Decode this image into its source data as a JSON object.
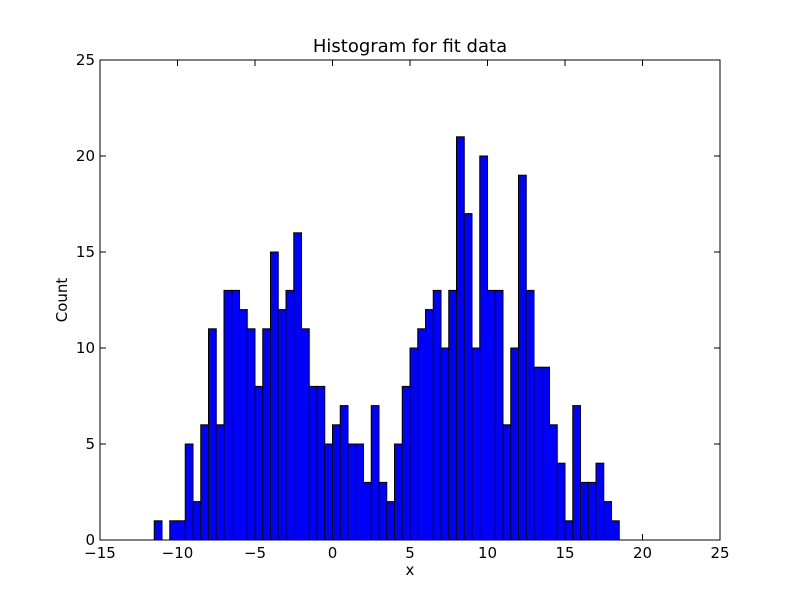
{
  "chart_data": {
    "type": "bar",
    "title": "Histogram for fit data",
    "xlabel": "x",
    "ylabel": "Count",
    "xlim": [
      -15,
      25
    ],
    "ylim": [
      0,
      25
    ],
    "xticks": [
      -15,
      -10,
      -5,
      0,
      5,
      10,
      15,
      20,
      25
    ],
    "yticks": [
      0,
      5,
      10,
      15,
      20,
      25
    ],
    "xtick_labels": [
      "−15",
      "−10",
      "−5",
      "0",
      "5",
      "10",
      "15",
      "20",
      "25"
    ],
    "ytick_labels": [
      "0",
      "5",
      "10",
      "15",
      "20",
      "25"
    ],
    "grid": false,
    "bar_color": "#0000ff",
    "bin_start": -11.5,
    "bin_width": 0.5,
    "values": [
      1,
      0,
      1,
      1,
      5,
      2,
      6,
      11,
      6,
      13,
      13,
      12,
      11,
      8,
      11,
      15,
      12,
      13,
      16,
      11,
      8,
      8,
      5,
      6,
      7,
      5,
      5,
      3,
      7,
      3,
      2,
      5,
      8,
      10,
      11,
      12,
      13,
      10,
      13,
      21,
      17,
      10,
      20,
      13,
      13,
      6,
      10,
      19,
      13,
      9,
      9,
      6,
      4,
      1,
      7,
      3,
      3,
      4,
      2,
      1
    ]
  }
}
